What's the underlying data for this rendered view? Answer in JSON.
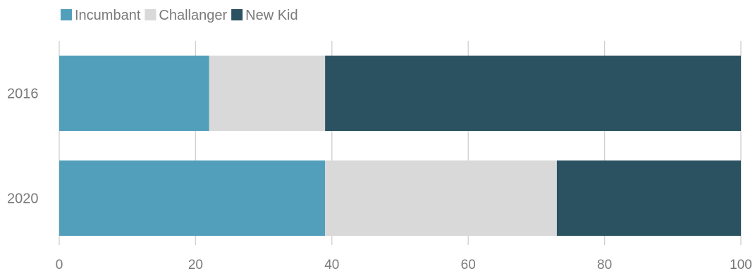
{
  "chart_data": {
    "type": "bar",
    "orientation": "horizontal",
    "stacked": true,
    "categories": [
      "2016",
      "2020"
    ],
    "series": [
      {
        "name": "Incumbant",
        "values": [
          22,
          39
        ],
        "color": "#529fbc"
      },
      {
        "name": "Challanger",
        "values": [
          17,
          34
        ],
        "color": "#d9d9d9"
      },
      {
        "name": "New Kid",
        "values": [
          61,
          27
        ],
        "color": "#2b5261"
      }
    ],
    "xlim": [
      0,
      100
    ],
    "xticks": [
      "0",
      "20",
      "40",
      "60",
      "80",
      "100"
    ],
    "grid": "vertical",
    "legend": "top-left"
  }
}
